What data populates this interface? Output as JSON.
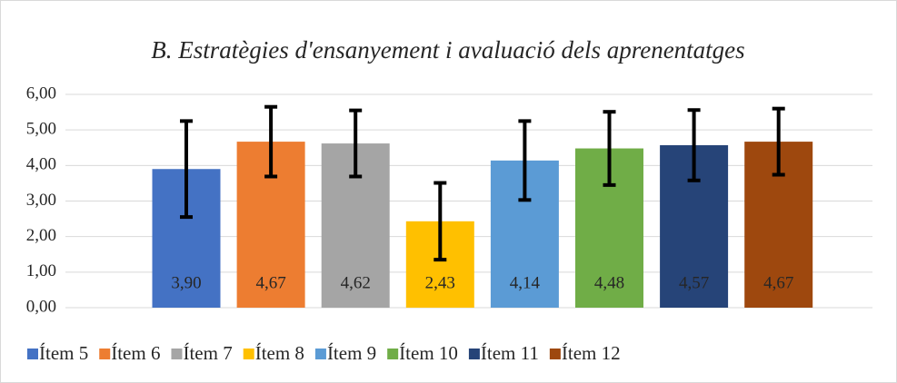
{
  "chart_data": {
    "type": "bar",
    "title": "B. Estratègies d'ensanyement i avaluació dels aprenentatges",
    "series": [
      {
        "name": "Ítem 5",
        "color": "#4472c4",
        "values": [
          3.9
        ],
        "value_labels": [
          "3,90"
        ],
        "errors": [
          1.35
        ]
      },
      {
        "name": "Ítem 6",
        "color": "#ed7d31",
        "values": [
          4.67
        ],
        "value_labels": [
          "4,67"
        ],
        "errors": [
          0.98
        ]
      },
      {
        "name": "Ítem 7",
        "color": "#a5a5a5",
        "values": [
          4.62
        ],
        "value_labels": [
          "4,62"
        ],
        "errors": [
          0.93
        ]
      },
      {
        "name": "Ítem 8",
        "color": "#ffc000",
        "values": [
          2.43
        ],
        "value_labels": [
          "2,43"
        ],
        "errors": [
          1.08
        ]
      },
      {
        "name": "Ítem 9",
        "color": "#5b9bd5",
        "values": [
          4.14
        ],
        "value_labels": [
          "4,14"
        ],
        "errors": [
          1.11
        ]
      },
      {
        "name": "Ítem 10",
        "color": "#70ad47",
        "values": [
          4.48
        ],
        "value_labels": [
          "4,48"
        ],
        "errors": [
          1.03
        ]
      },
      {
        "name": "Ítem 11",
        "color": "#264478",
        "values": [
          4.57
        ],
        "value_labels": [
          "4,57"
        ],
        "errors": [
          0.99
        ]
      },
      {
        "name": "Ítem 12",
        "color": "#9e480e",
        "values": [
          4.67
        ],
        "value_labels": [
          "4,67"
        ],
        "errors": [
          0.93
        ]
      }
    ],
    "ylim": [
      0,
      6
    ],
    "yticks": [
      {
        "value": 0,
        "label": "0,00"
      },
      {
        "value": 1,
        "label": "1,00"
      },
      {
        "value": 2,
        "label": "2,00"
      },
      {
        "value": 3,
        "label": "3,00"
      },
      {
        "value": 4,
        "label": "4,00"
      },
      {
        "value": 5,
        "label": "5,00"
      },
      {
        "value": 6,
        "label": "6,00"
      }
    ],
    "grid": true
  }
}
